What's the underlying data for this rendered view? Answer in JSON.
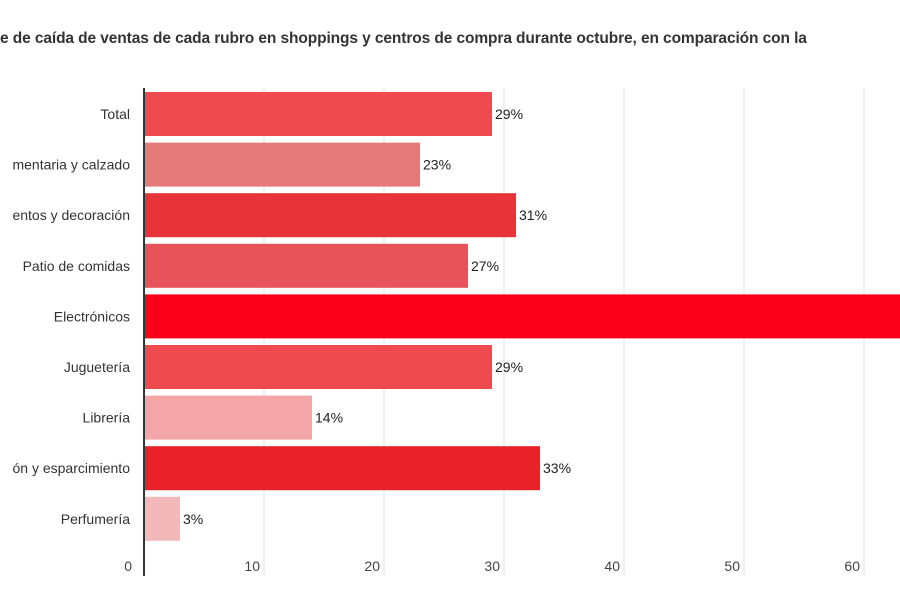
{
  "chart_data": {
    "type": "bar",
    "orientation": "horizontal",
    "title": "e de caída de ventas de cada rubro en shoppings y centros de compra durante octubre, en comparación con la",
    "categories": [
      "Total",
      "mentaria y calzado",
      "entos y decoración",
      "Patio de comidas",
      "Electrónicos",
      "Juguetería",
      "Librería",
      "ón y esparcimiento",
      "Perfumería"
    ],
    "values": [
      29,
      23,
      31,
      27,
      66,
      29,
      14,
      33,
      3
    ],
    "labels": [
      "29%",
      "23%",
      "31%",
      "27%",
      null,
      "29%",
      "14%",
      "33%",
      "3%"
    ],
    "colors": [
      "#ef4a50",
      "#e57a7b",
      "#e8333a",
      "#e8525a",
      "#fb0019",
      "#ef4a50",
      "#f4a5a8",
      "#e82228",
      "#f2b8ba"
    ],
    "xlim": [
      0,
      64
    ],
    "xticks": [
      "0",
      "10",
      "20",
      "30",
      "40",
      "50",
      "60"
    ],
    "grid": true,
    "xlabel": "",
    "ylabel": ""
  }
}
